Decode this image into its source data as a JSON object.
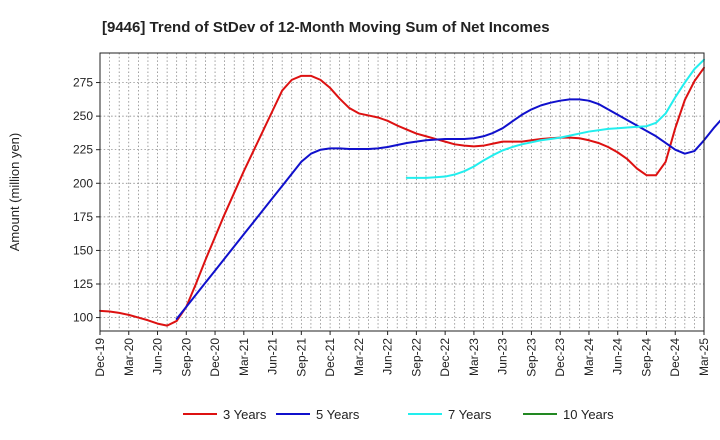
{
  "chart_data": {
    "type": "line",
    "title": "[9446]  Trend of StDev of 12-Month Moving Sum of Net Incomes",
    "ylabel": "Amount (million yen)",
    "xlabel": "",
    "ylim": [
      90,
      297
    ],
    "yticks": [
      100,
      125,
      150,
      175,
      200,
      225,
      250,
      275
    ],
    "xticks": [
      "Dec-19",
      "Mar-20",
      "Jun-20",
      "Sep-20",
      "Dec-20",
      "Mar-21",
      "Jun-21",
      "Sep-21",
      "Dec-21",
      "Mar-22",
      "Jun-22",
      "Sep-22",
      "Dec-22",
      "Mar-23",
      "Jun-23",
      "Sep-23",
      "Dec-23",
      "Mar-24",
      "Jun-24",
      "Sep-24",
      "Dec-24",
      "Mar-25"
    ],
    "grid": true,
    "legend_position": "bottom",
    "series": [
      {
        "name": "3 Years",
        "color": "#dd1111",
        "start": "Dec-19",
        "values": [
          105,
          104.5,
          103.5,
          102,
          100,
          98,
          95.5,
          94,
          97.5,
          108,
          125,
          143,
          160,
          177,
          193,
          209,
          224,
          239,
          254,
          269,
          277,
          280,
          280,
          277,
          271,
          263,
          256,
          252,
          250.5,
          249,
          246.5,
          243,
          240,
          237,
          235,
          233,
          231,
          229,
          228,
          227.5,
          228,
          229.5,
          231,
          231,
          231,
          232,
          233,
          233.5,
          234,
          234,
          233.5,
          232,
          230,
          227,
          223,
          218,
          211,
          206,
          206,
          216,
          241,
          262,
          276,
          286
        ]
      },
      {
        "name": "5 Years",
        "color": "#1010cc",
        "start": "Aug-20",
        "values": [
          99,
          108,
          117,
          126,
          135,
          144,
          153,
          162,
          171,
          180,
          189,
          198,
          207,
          216,
          222,
          225,
          226,
          226,
          225.5,
          225.5,
          225.5,
          226,
          227,
          228.5,
          230,
          231,
          232,
          232.5,
          233,
          233,
          233,
          233.5,
          235,
          237.5,
          241,
          246,
          251,
          255,
          258,
          260,
          261.5,
          262.5,
          262.5,
          261.5,
          259,
          255,
          251,
          247,
          243,
          239,
          235,
          230,
          225,
          222,
          224,
          232,
          241,
          249,
          255,
          259
        ]
      },
      {
        "name": "7 Years",
        "color": "#22eeee",
        "start": "Aug-22",
        "values": [
          204,
          204,
          204,
          204.5,
          205,
          206.5,
          209,
          212.5,
          217,
          221,
          224.5,
          227,
          229,
          230.5,
          232,
          233,
          234,
          235.5,
          237,
          238.5,
          239.5,
          240.5,
          241,
          241.5,
          242,
          242.5,
          245,
          252,
          264,
          275,
          285,
          292
        ]
      },
      {
        "name": "10 Years",
        "color": "#228822",
        "start": "Dec-19",
        "values": []
      }
    ]
  }
}
